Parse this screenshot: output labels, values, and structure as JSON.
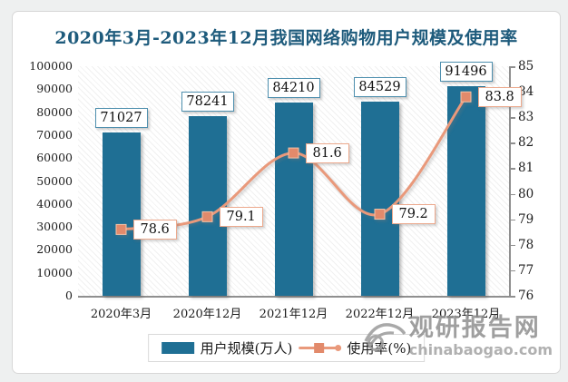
{
  "title": "2020年3月-2023年12月我国网络购物用户规模及使用率",
  "chart_data": {
    "type": "bar",
    "subtype": "combo-bar-line-dual-axis",
    "title": "2020年3月-2023年12月我国网络购物用户规模及使用率",
    "categories": [
      "2020年3月",
      "2020年12月",
      "2021年12月",
      "2022年12月",
      "2023年12月"
    ],
    "series": [
      {
        "name": "用户规模(万人)",
        "type": "bar",
        "axis": "left",
        "color": "#1f6f94",
        "values": [
          71027,
          78241,
          84210,
          84529,
          91496
        ]
      },
      {
        "name": "使用率(%)",
        "type": "line",
        "axis": "right",
        "color": "#e9997b",
        "marker": "square",
        "values": [
          78.6,
          79.1,
          81.6,
          79.2,
          83.8
        ]
      }
    ],
    "left_axis": {
      "min": 0,
      "max": 100000,
      "step": 10000,
      "ticks": [
        "100000",
        "90000",
        "80000",
        "70000",
        "60000",
        "50000",
        "40000",
        "30000",
        "20000",
        "10000",
        "0"
      ]
    },
    "right_axis": {
      "min": 76,
      "max": 85,
      "step": 1,
      "ticks": [
        "85",
        "84",
        "83",
        "82",
        "81",
        "80",
        "79",
        "78",
        "77",
        "76"
      ]
    },
    "grid": false,
    "legend_position": "bottom",
    "plot_background": "diagonal-hatch"
  },
  "legend": {
    "items": [
      {
        "label": "用户规模(万人)",
        "marker": "bar-swatch",
        "color": "#1f6f94"
      },
      {
        "label": "使用率(%)",
        "marker": "line-square",
        "color": "#e9997b"
      }
    ]
  },
  "watermark": {
    "icon": "eye-logo-icon",
    "name": "观研报告网",
    "domain": "chinabaogao.com"
  },
  "colors": {
    "bar": "#1f6f94",
    "line": "#e9997b",
    "line_marker": "#e28a6b",
    "title_text": "#1e5b7c",
    "axis_line": "#8f8f8f",
    "bar_label_border": "#4e8fae",
    "line_label_border": "#eca98d",
    "card_border": "#d7d7d7",
    "watermark_gray": "#8f8f8f"
  }
}
